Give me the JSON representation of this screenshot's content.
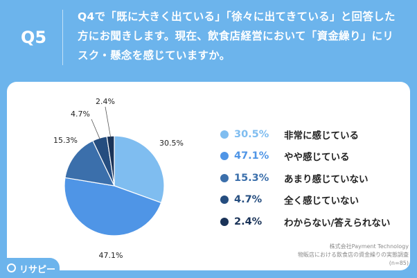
{
  "question": {
    "label": "Q5",
    "text": "Q4で「既に大きく出ている」「徐々に出てきている」と回答した方にお聞きします。現在、飲食店経営において「資金繰り」にリスク・懸念を感じていますか。"
  },
  "source": {
    "company": "株式会社Payment Technology",
    "survey": "物販店における飲食店の資金繰りの実態調査",
    "sample": "(n=85)"
  },
  "logo": {
    "text": "リサピー"
  },
  "chart_data": {
    "type": "pie",
    "slices": [
      {
        "label": "非常に感じている",
        "value": 30.5,
        "display": "30.5%",
        "color": "#7fbdf0"
      },
      {
        "label": "やや感じている",
        "value": 47.1,
        "display": "47.1%",
        "color": "#4f95e6"
      },
      {
        "label": "あまり感じていない",
        "value": 15.3,
        "display": "15.3%",
        "color": "#3b6fab"
      },
      {
        "label": "全く感じていない",
        "value": 4.7,
        "display": "4.7%",
        "color": "#254d7f"
      },
      {
        "label": "わからない/答えられない",
        "value": 2.4,
        "display": "2.4%",
        "color": "#1a3358"
      }
    ]
  }
}
